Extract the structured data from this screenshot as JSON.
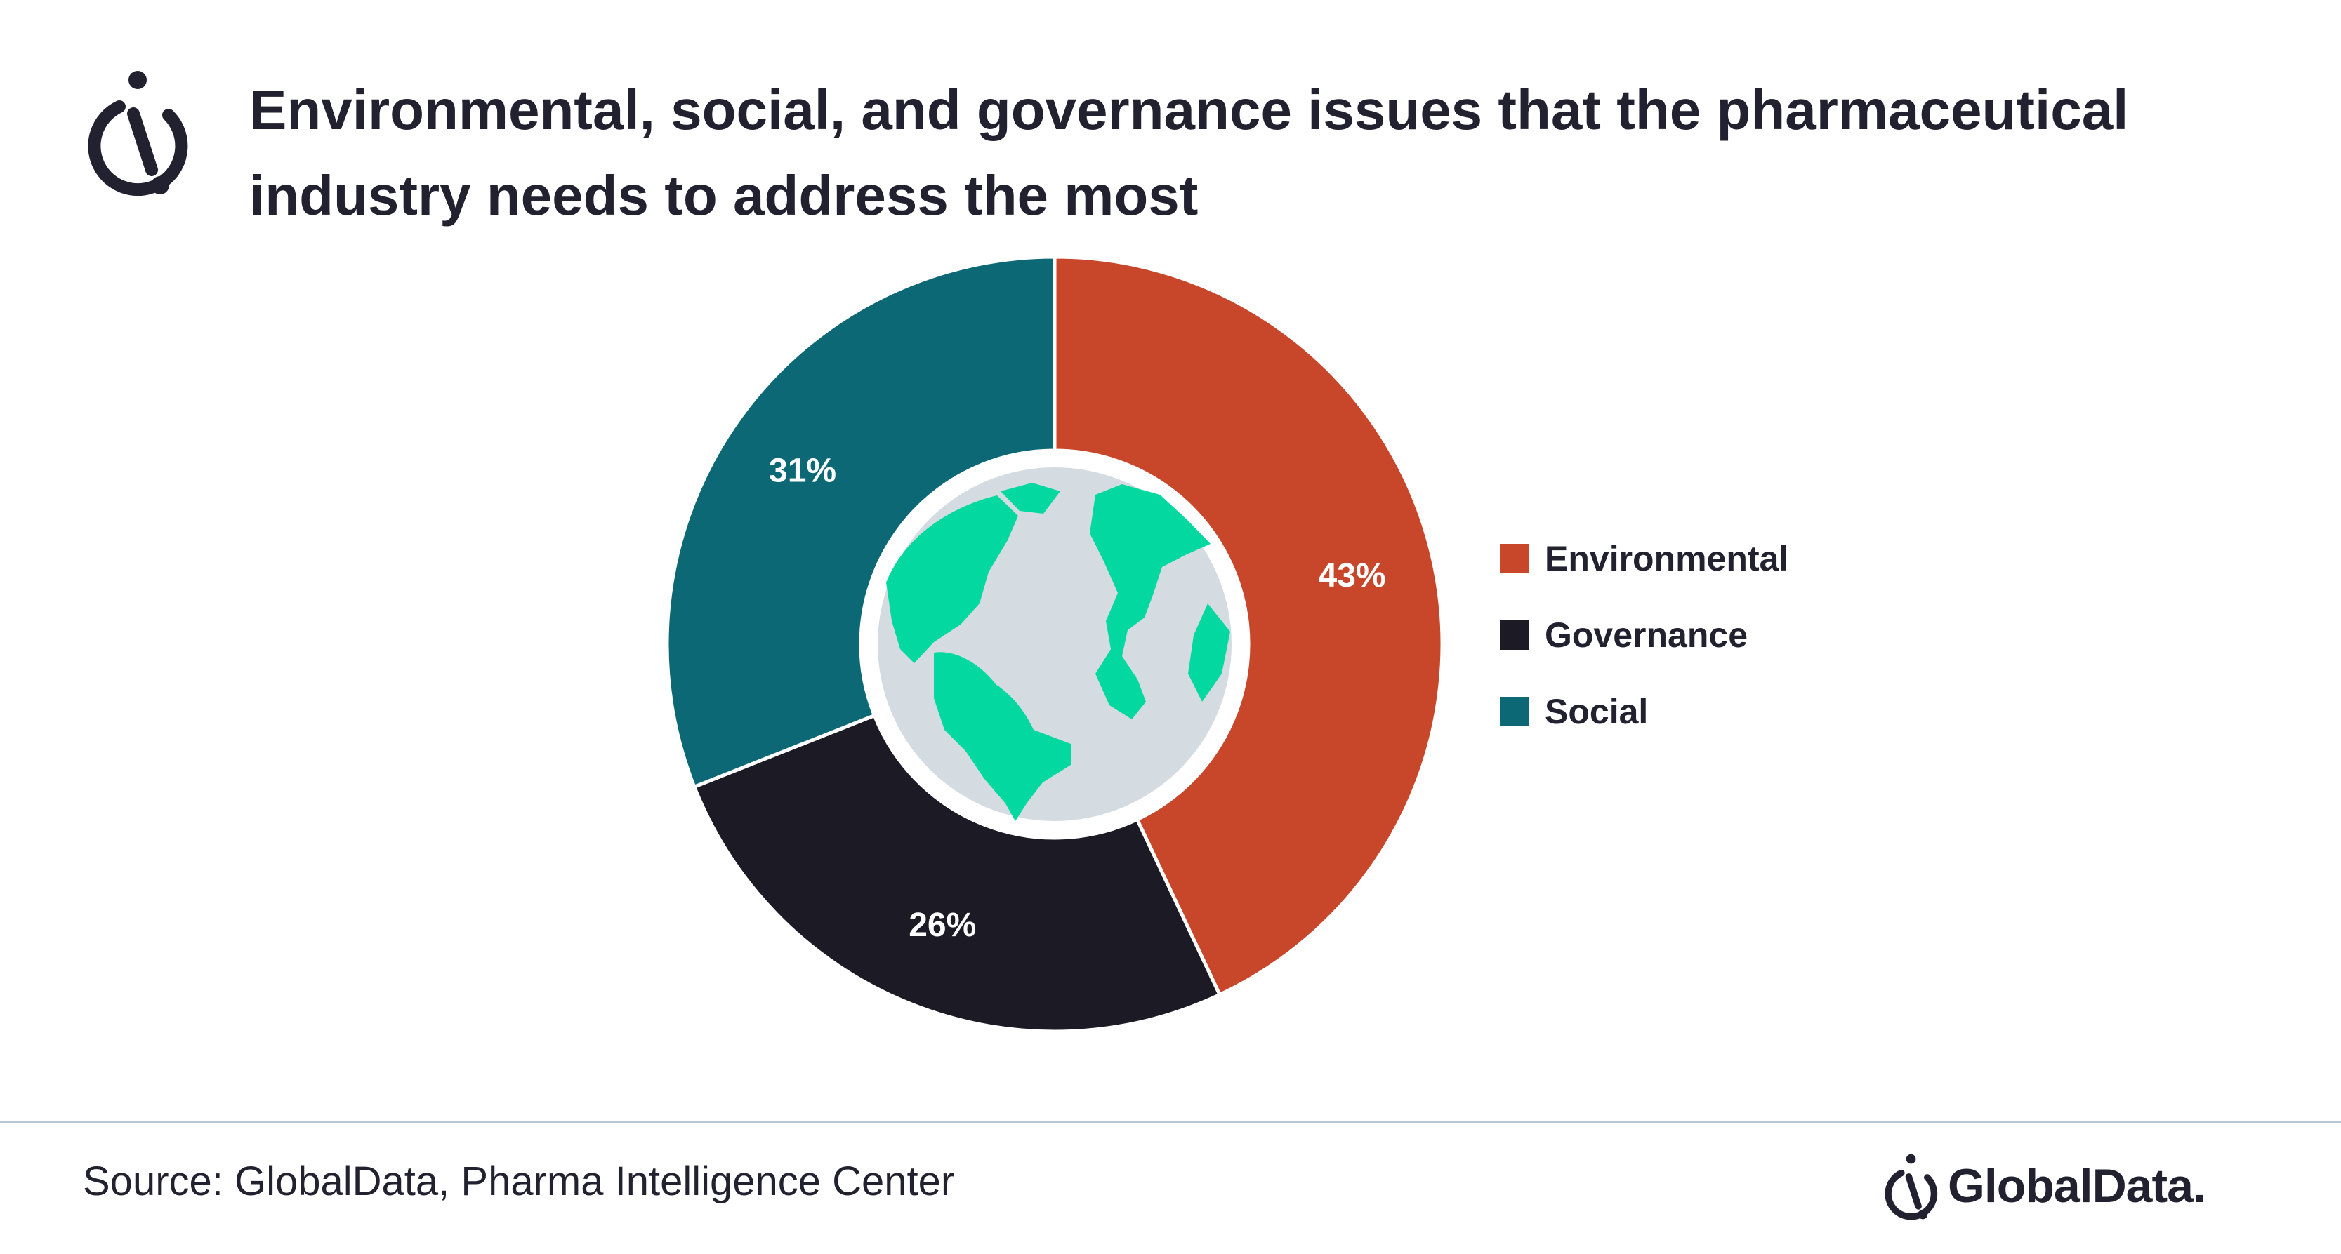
{
  "title": "Environmental, social, and governance issues that the pharmaceutical industry needs to address the most",
  "source": "Source: GlobalData, Pharma Intelligence Center",
  "brand": {
    "name": "GlobalData.",
    "logo_icon": "globaldata-logo-icon"
  },
  "header_icon": "globaldata-logo-icon",
  "center_image": "globe-icon",
  "chart_data": {
    "type": "pie",
    "donut": true,
    "categories": [
      "Environmental",
      "Governance",
      "Social"
    ],
    "values": [
      43,
      26,
      31
    ],
    "labels": [
      "43%",
      "26%",
      "31%"
    ],
    "colors": [
      "#c8472b",
      "#1c1a24",
      "#0d6876"
    ],
    "legend_position": "right"
  }
}
